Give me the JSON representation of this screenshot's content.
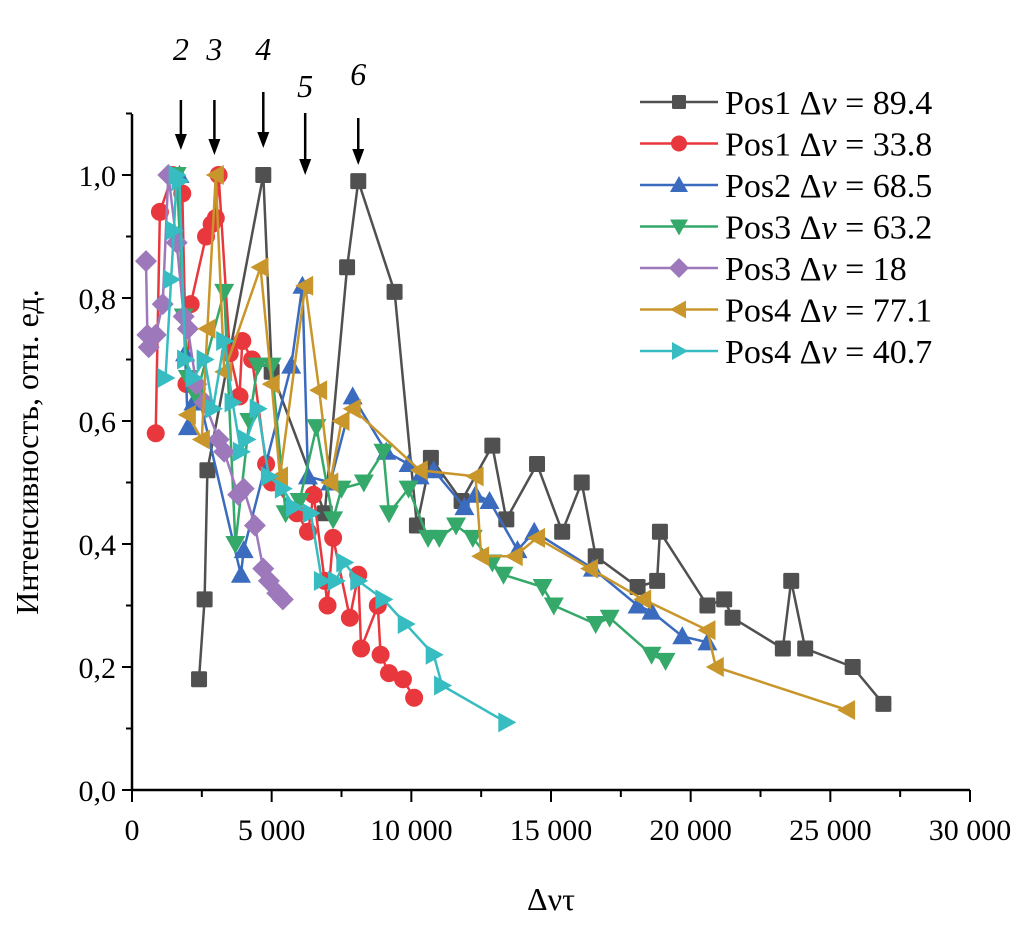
{
  "chart_data": {
    "type": "line",
    "title": "",
    "xlabel": "Δντ",
    "ylabel": "Интенсивность, отн. ед.",
    "xlim": [
      0,
      30000
    ],
    "ylim": [
      0,
      1.1
    ],
    "grid": false,
    "legend_position": "top-right",
    "x_ticks": [
      0,
      5000,
      10000,
      15000,
      20000,
      25000,
      30000
    ],
    "x_tick_labels": [
      "0",
      "5 000",
      "10 000",
      "15 000",
      "20 000",
      "25 000",
      "30 000"
    ],
    "y_ticks": [
      0,
      0.2,
      0.4,
      0.6,
      0.8,
      1.0
    ],
    "y_tick_labels": [
      "0,0",
      "0,2",
      "0,4",
      "0,6",
      "0,8",
      "1,0"
    ],
    "annotations": [
      {
        "label": "2",
        "x": 1750
      },
      {
        "label": "3",
        "x": 2950
      },
      {
        "label": "4",
        "x": 4700
      },
      {
        "label": "5",
        "x": 6200
      },
      {
        "label": "6",
        "x": 8100
      }
    ],
    "series": [
      {
        "name": "Pos1 Δν = 89.4",
        "label_prefix": "Pos1 ",
        "label_value": " = 89.4",
        "color": "#505050",
        "marker": "square",
        "x": [
          2400,
          2600,
          2700,
          4700,
          5000,
          6900,
          7700,
          8100,
          9400,
          10200,
          10700,
          11800,
          12900,
          13400,
          14500,
          15400,
          16100,
          16600,
          18100,
          18800,
          18900,
          20600,
          21200,
          21500,
          23300,
          23600,
          24100,
          25800,
          26900
        ],
        "y": [
          0.18,
          0.31,
          0.52,
          1.0,
          0.68,
          0.45,
          0.85,
          0.99,
          0.81,
          0.43,
          0.54,
          0.47,
          0.56,
          0.44,
          0.53,
          0.42,
          0.5,
          0.38,
          0.33,
          0.34,
          0.42,
          0.3,
          0.31,
          0.28,
          0.23,
          0.34,
          0.23,
          0.2,
          0.14
        ]
      },
      {
        "name": "Pos1 Δν = 33.8",
        "label_prefix": "Pos1 ",
        "label_value": " = 33.8",
        "color": "#e8383d",
        "marker": "circle",
        "x": [
          850,
          1000,
          1450,
          1800,
          1950,
          2100,
          2650,
          2850,
          3000,
          3100,
          3500,
          3850,
          3950,
          4300,
          4800,
          5000,
          5900,
          6300,
          6500,
          6900,
          7000,
          7200,
          7800,
          8100,
          8200,
          8800,
          8900,
          9200,
          9700,
          10100
        ],
        "y": [
          0.58,
          0.94,
          1.0,
          0.97,
          0.66,
          0.79,
          0.9,
          0.92,
          0.93,
          1.0,
          0.71,
          0.64,
          0.73,
          0.7,
          0.53,
          0.5,
          0.45,
          0.42,
          0.48,
          0.34,
          0.3,
          0.41,
          0.28,
          0.35,
          0.23,
          0.3,
          0.22,
          0.19,
          0.18,
          0.15
        ]
      },
      {
        "name": "Pos2 Δν = 68.5",
        "label_prefix": "Pos2 ",
        "label_value": " = 68.5",
        "color": "#3a6bbf",
        "marker": "triangle-up",
        "x": [
          1700,
          1900,
          2000,
          2200,
          2400,
          3900,
          4000,
          5700,
          6100,
          6300,
          7100,
          7900,
          9100,
          9900,
          10300,
          10800,
          11900,
          12300,
          12800,
          13800,
          14400,
          16500,
          18100,
          18600,
          19700,
          20600
        ],
        "y": [
          1.0,
          0.71,
          0.59,
          0.63,
          0.64,
          0.35,
          0.39,
          0.69,
          0.82,
          0.51,
          0.5,
          0.64,
          0.55,
          0.53,
          0.51,
          0.52,
          0.46,
          0.48,
          0.47,
          0.39,
          0.42,
          0.36,
          0.3,
          0.29,
          0.25,
          0.24
        ]
      },
      {
        "name": "Pos3 Δν = 63.2",
        "label_prefix": "Pos3 ",
        "label_value": " = 63.2",
        "color": "#35a96a",
        "marker": "triangle-down",
        "x": [
          1600,
          1850,
          2000,
          2300,
          3300,
          3700,
          4200,
          4500,
          5000,
          5500,
          6000,
          6600,
          7200,
          7500,
          8300,
          9000,
          9200,
          9900,
          10600,
          11000,
          11600,
          12200,
          12900,
          13300,
          14700,
          15100,
          16600,
          17100,
          18600,
          19100
        ],
        "y": [
          1.0,
          0.77,
          0.67,
          0.64,
          0.81,
          0.4,
          0.6,
          0.69,
          0.69,
          0.45,
          0.47,
          0.59,
          0.44,
          0.49,
          0.5,
          0.55,
          0.45,
          0.49,
          0.41,
          0.41,
          0.43,
          0.41,
          0.37,
          0.35,
          0.33,
          0.3,
          0.27,
          0.28,
          0.22,
          0.21
        ]
      },
      {
        "name": "Pos3 Δν = 18",
        "label_prefix": "Pos3 ",
        "label_value": " = 18",
        "color": "#9d79bc",
        "marker": "diamond",
        "x": [
          500,
          550,
          600,
          850,
          1100,
          1300,
          1600,
          1850,
          2000,
          2300,
          2600,
          3100,
          3300,
          3800,
          4000,
          4400,
          4700,
          4900,
          5200,
          5400
        ],
        "y": [
          0.86,
          0.74,
          0.72,
          0.74,
          0.79,
          1.0,
          0.89,
          0.77,
          0.75,
          0.66,
          0.63,
          0.57,
          0.55,
          0.48,
          0.49,
          0.43,
          0.36,
          0.34,
          0.32,
          0.31
        ]
      },
      {
        "name": "Pos4 Δν = 77.1",
        "label_prefix": "Pos4 ",
        "label_value": " = 77.1",
        "color": "#c8962a",
        "marker": "triangle-left",
        "x": [
          2000,
          2500,
          2700,
          3000,
          3300,
          4600,
          5000,
          5300,
          6200,
          6700,
          7100,
          7500,
          7900,
          10300,
          12300,
          12500,
          13700,
          14500,
          16400,
          18300,
          20600,
          20900,
          25600
        ],
        "y": [
          0.61,
          0.57,
          0.75,
          1.0,
          0.68,
          0.85,
          0.66,
          0.51,
          0.82,
          0.65,
          0.5,
          0.6,
          0.62,
          0.52,
          0.51,
          0.38,
          0.38,
          0.41,
          0.36,
          0.31,
          0.26,
          0.2,
          0.13
        ]
      },
      {
        "name": "Pos4 Δν = 40.7",
        "label_prefix": "Pos4 ",
        "label_value": " = 40.7",
        "color": "#37bcc1",
        "marker": "triangle-right",
        "x": [
          1200,
          1400,
          1500,
          1600,
          1700,
          1900,
          2200,
          2600,
          2900,
          3300,
          3600,
          3900,
          4100,
          4500,
          4900,
          5400,
          5800,
          6400,
          6800,
          7300,
          7600,
          8100,
          9000,
          9800,
          10800,
          11100,
          13400
        ],
        "y": [
          0.67,
          0.83,
          0.91,
          1.0,
          0.99,
          0.7,
          0.67,
          0.7,
          0.62,
          0.73,
          0.63,
          0.55,
          0.57,
          0.62,
          0.51,
          0.49,
          0.46,
          0.45,
          0.34,
          0.34,
          0.37,
          0.34,
          0.31,
          0.27,
          0.22,
          0.17,
          0.11
        ]
      }
    ]
  }
}
